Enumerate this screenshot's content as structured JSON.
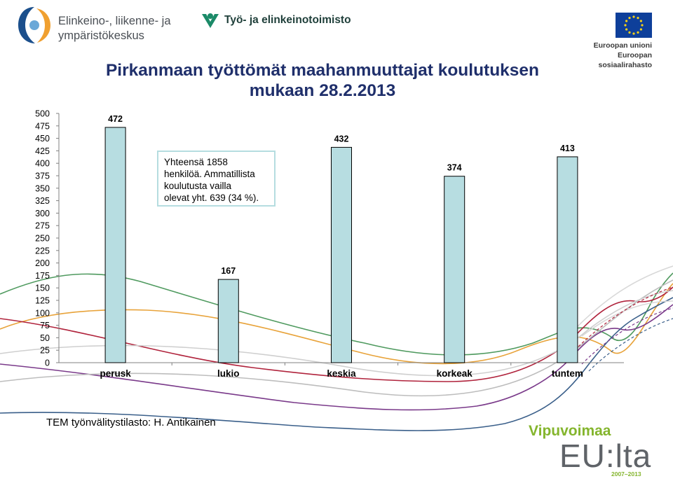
{
  "header": {
    "ely_line1": "Elinkeino-, liikenne- ja",
    "ely_line2": "ympäristökeskus",
    "te_name": "Työ- ja elinkeinotoimisto",
    "eu_line1": "Euroopan unioni",
    "eu_line2": "Euroopan sosiaalirahasto"
  },
  "chart_data": {
    "type": "bar",
    "title_line1": "Pirkanmaan työttömät maahanmuuttajat koulutuksen",
    "title_line2": "mukaan 28.2.2013",
    "categories": [
      "perusk",
      "lukio",
      "keskia",
      "korkeak",
      "tuntem"
    ],
    "values": [
      472,
      167,
      432,
      374,
      413
    ],
    "ylim": [
      0,
      500
    ],
    "yticks": [
      "0",
      "25",
      "50",
      "75",
      "100",
      "125",
      "150",
      "175",
      "200",
      "225",
      "250",
      "275",
      "300",
      "325",
      "350",
      "375",
      "400",
      "425",
      "450",
      "475",
      "500"
    ],
    "bar_color": "#b7dde1",
    "grid": false,
    "annotation": [
      "Yhteensä 1858",
      "henkilöä. Ammatillista",
      "koulutusta vailla",
      "olevat yht. 639 (34 %)."
    ]
  },
  "footer": {
    "source": "TEM työnvälitystilasto: H. Antikainen",
    "vip_line1": "Vipuvoimaa",
    "vip_line2": "EU:lta",
    "vip_years": "2007–2013"
  },
  "colors": {
    "title": "#1f2f6b",
    "ely_blue": "#1b4f8c",
    "ely_orange": "#f0a030",
    "te_green": "#1b8a68",
    "eu_blue": "#0e3f9a",
    "eu_star": "#f7d117",
    "vip_green": "#84b52d"
  }
}
